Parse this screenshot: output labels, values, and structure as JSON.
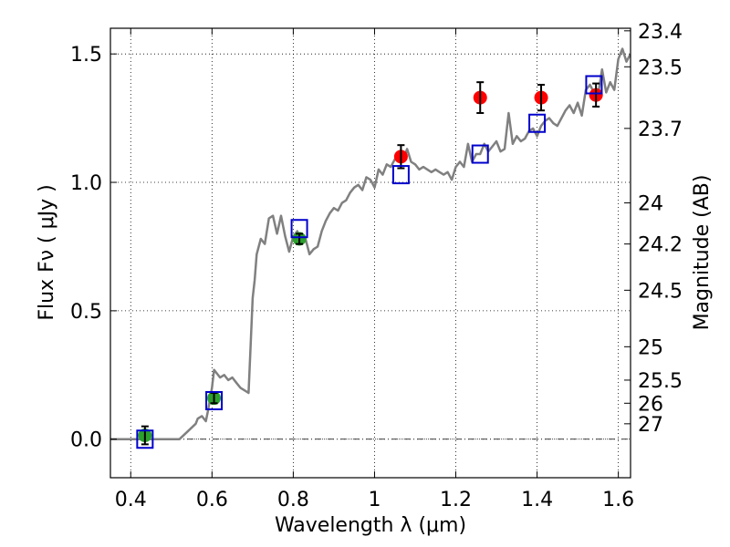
{
  "chart_data": {
    "type": "scatter",
    "title": "",
    "xlabel": "Wavelength  λ (μm)",
    "ylabel": "Flux  Fν ( μJy )",
    "y2label": "Magnitude (AB)",
    "xlim": [
      0.35,
      1.63
    ],
    "ylim": [
      -0.15,
      1.6
    ],
    "grid": true,
    "x_ticks": [
      {
        "value": 0.4,
        "label": "0.4"
      },
      {
        "value": 0.6,
        "label": "0.6"
      },
      {
        "value": 0.8,
        "label": "0.8"
      },
      {
        "value": 1.0,
        "label": "1"
      },
      {
        "value": 1.2,
        "label": "1.2"
      },
      {
        "value": 1.4,
        "label": "1.4"
      },
      {
        "value": 1.6,
        "label": "1.6"
      }
    ],
    "y_ticks": [
      {
        "value": 0.0,
        "label": "0.0"
      },
      {
        "value": 0.5,
        "label": "0.5"
      },
      {
        "value": 1.0,
        "label": "1.0"
      },
      {
        "value": 1.5,
        "label": "1.5"
      }
    ],
    "y2_ticks": [
      {
        "flux": 1.59,
        "label": "23.4"
      },
      {
        "flux": 1.45,
        "label": "23.5"
      },
      {
        "flux": 1.21,
        "label": "23.7"
      },
      {
        "flux": 0.92,
        "label": "24"
      },
      {
        "flux": 0.76,
        "label": "24.2"
      },
      {
        "flux": 0.58,
        "label": "24.5"
      },
      {
        "flux": 0.36,
        "label": "25"
      },
      {
        "flux": 0.23,
        "label": "25.5"
      },
      {
        "flux": 0.14,
        "label": "26"
      },
      {
        "flux": 0.06,
        "label": "27"
      }
    ],
    "model_sed": {
      "color": "#808080",
      "x": [
        0.35,
        0.4,
        0.45,
        0.5,
        0.52,
        0.54,
        0.56,
        0.565,
        0.575,
        0.585,
        0.59,
        0.6,
        0.605,
        0.61,
        0.62,
        0.63,
        0.64,
        0.65,
        0.66,
        0.67,
        0.68,
        0.69,
        0.695,
        0.7,
        0.705,
        0.71,
        0.72,
        0.73,
        0.74,
        0.75,
        0.76,
        0.77,
        0.78,
        0.79,
        0.8,
        0.81,
        0.82,
        0.83,
        0.84,
        0.85,
        0.86,
        0.87,
        0.88,
        0.89,
        0.9,
        0.91,
        0.92,
        0.93,
        0.94,
        0.95,
        0.96,
        0.97,
        0.98,
        0.99,
        1.0,
        1.01,
        1.02,
        1.03,
        1.04,
        1.05,
        1.06,
        1.07,
        1.08,
        1.09,
        1.1,
        1.11,
        1.12,
        1.13,
        1.14,
        1.15,
        1.16,
        1.17,
        1.18,
        1.19,
        1.2,
        1.21,
        1.22,
        1.23,
        1.24,
        1.25,
        1.26,
        1.27,
        1.28,
        1.29,
        1.3,
        1.31,
        1.32,
        1.33,
        1.34,
        1.35,
        1.36,
        1.37,
        1.38,
        1.39,
        1.4,
        1.41,
        1.42,
        1.43,
        1.44,
        1.45,
        1.46,
        1.47,
        1.48,
        1.49,
        1.5,
        1.51,
        1.52,
        1.53,
        1.54,
        1.55,
        1.56,
        1.57,
        1.58,
        1.59,
        1.6,
        1.61,
        1.62,
        1.63
      ],
      "y": [
        0.0,
        0.0,
        0.0,
        0.0,
        0.0,
        0.03,
        0.06,
        0.08,
        0.09,
        0.07,
        0.11,
        0.2,
        0.27,
        0.26,
        0.24,
        0.25,
        0.23,
        0.24,
        0.22,
        0.2,
        0.19,
        0.18,
        0.36,
        0.55,
        0.62,
        0.72,
        0.78,
        0.76,
        0.86,
        0.87,
        0.8,
        0.87,
        0.79,
        0.73,
        0.79,
        0.81,
        0.76,
        0.78,
        0.72,
        0.74,
        0.75,
        0.81,
        0.85,
        0.88,
        0.9,
        0.89,
        0.92,
        0.93,
        0.96,
        0.98,
        0.99,
        0.97,
        1.02,
        1.01,
        0.98,
        1.05,
        1.03,
        1.07,
        1.06,
        1.09,
        1.1,
        1.08,
        1.13,
        1.08,
        1.07,
        1.05,
        1.06,
        1.05,
        1.04,
        1.05,
        1.04,
        1.03,
        1.04,
        1.01,
        1.06,
        1.08,
        1.06,
        1.15,
        1.08,
        1.11,
        1.11,
        1.15,
        1.12,
        1.14,
        1.16,
        1.12,
        1.13,
        1.27,
        1.15,
        1.18,
        1.16,
        1.17,
        1.2,
        1.21,
        1.18,
        1.22,
        1.24,
        1.25,
        1.23,
        1.22,
        1.25,
        1.28,
        1.3,
        1.27,
        1.31,
        1.26,
        1.36,
        1.38,
        1.35,
        1.34,
        1.44,
        1.35,
        1.39,
        1.36,
        1.48,
        1.52,
        1.47,
        1.5
      ]
    },
    "series": [
      {
        "marker": "circle",
        "color": "#2ca02c",
        "x": [
          0.435,
          0.605,
          0.815
        ],
        "y": [
          0.015,
          0.16,
          0.78
        ],
        "yerr": [
          0.035,
          0.02,
          0.02
        ]
      },
      {
        "marker": "circle",
        "color": "#ff0000",
        "x": [
          1.065,
          1.26,
          1.41,
          1.545
        ],
        "y": [
          1.1,
          1.33,
          1.33,
          1.34
        ],
        "yerr": [
          0.045,
          0.06,
          0.05,
          0.045
        ]
      },
      {
        "marker": "square",
        "color": "#0000cc",
        "x": [
          0.435,
          0.605,
          0.815,
          1.065,
          1.26,
          1.4,
          1.54
        ],
        "y": [
          0.0,
          0.15,
          0.82,
          1.03,
          1.11,
          1.23,
          1.38
        ]
      }
    ],
    "reference_line": {
      "y": 0.0,
      "style": "dash-dot",
      "color": "#000000"
    }
  }
}
